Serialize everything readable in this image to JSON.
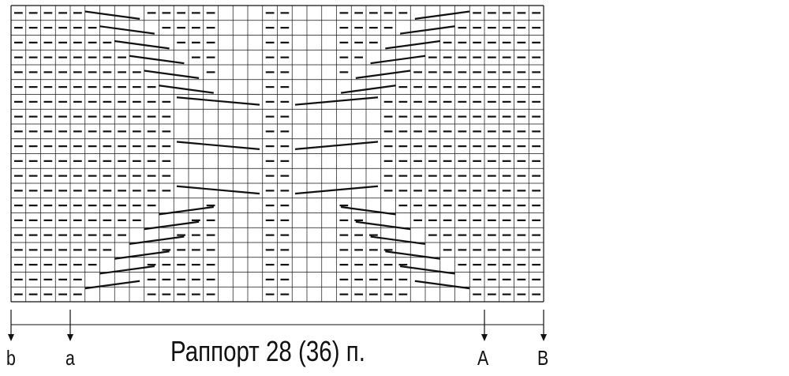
{
  "diagram": {
    "type": "knitting-chart",
    "grid": {
      "columns": 36,
      "rows": 20
    },
    "colors": {
      "line": "#111111",
      "background": "#ffffff"
    },
    "symbols": {
      "purl": "dash",
      "knit": "empty-cell",
      "cross": "slanted-line"
    },
    "labels": {
      "b": "b",
      "a": "a",
      "A": "A",
      "B": "B",
      "rapport": "Раппорт 28 (36) п."
    }
  }
}
